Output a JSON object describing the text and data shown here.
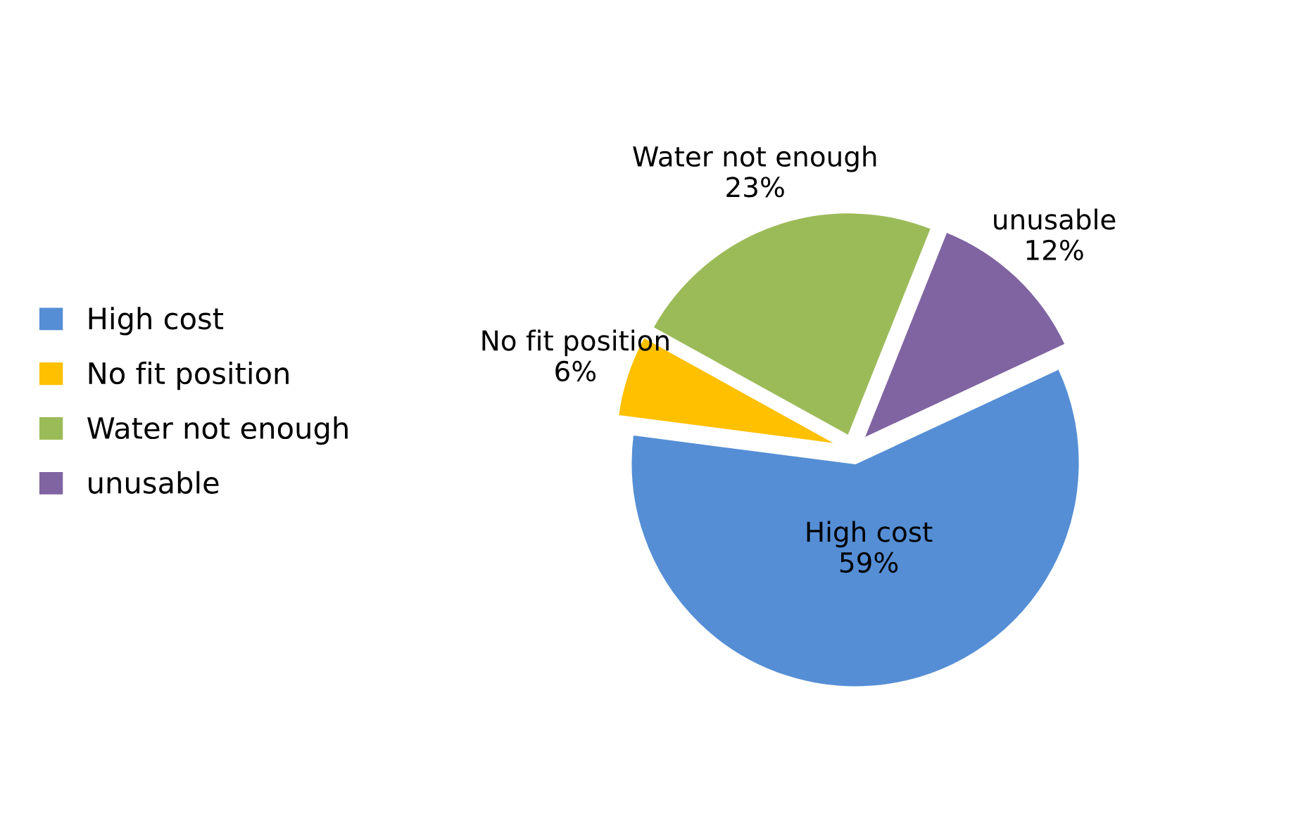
{
  "chart_data": {
    "type": "pie",
    "categories": [
      "High cost",
      "No fit position",
      "Water not enough",
      "unusable"
    ],
    "values": [
      59,
      6,
      23,
      12
    ],
    "colors": [
      "#558ed5",
      "#ffc000",
      "#9bbb59",
      "#8064a2"
    ],
    "value_labels": [
      "59%",
      "6%",
      "23%",
      "12%"
    ],
    "legend": "left"
  }
}
